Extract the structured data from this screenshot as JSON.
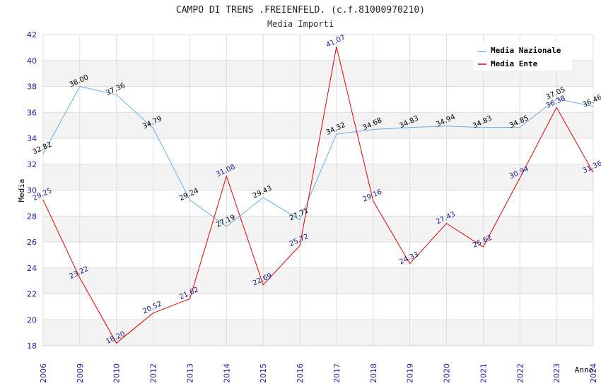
{
  "chart_data": {
    "type": "line",
    "title": "CAMPO DI TRENS .FREIENFELD. (c.f.81000970210)",
    "subtitle": "Media Importi",
    "xlabel": "Anno",
    "ylabel": "Media",
    "ylim": [
      18,
      42
    ],
    "yticks": [
      18,
      20,
      22,
      24,
      26,
      28,
      30,
      32,
      34,
      36,
      38,
      40,
      42
    ],
    "categories": [
      "2006",
      "2009",
      "2010",
      "2012",
      "2013",
      "2014",
      "2015",
      "2016",
      "2017",
      "2018",
      "2019",
      "2020",
      "2021",
      "2022",
      "2023",
      "2024"
    ],
    "series": [
      {
        "name": "Media Nazionale",
        "color": "#6aaee8",
        "label_color": "#000000",
        "values": [
          32.82,
          38.0,
          37.36,
          34.79,
          29.24,
          27.19,
          29.43,
          27.71,
          34.32,
          34.68,
          34.83,
          34.94,
          34.83,
          34.85,
          37.05,
          36.46
        ],
        "labels": [
          "32.82",
          "38.00",
          "37.36",
          "34.79",
          "29.24",
          "27.19",
          "29.43",
          "27.71",
          "34.32",
          "34.68",
          "34.83",
          "34.94",
          "34.83",
          "34.85",
          "37.05",
          "36.46"
        ]
      },
      {
        "name": "Media Ente",
        "color": "#e00000",
        "label_color": "#1a1a8c",
        "values": [
          29.25,
          23.22,
          18.2,
          20.52,
          21.62,
          31.08,
          22.69,
          25.72,
          41.07,
          29.16,
          24.33,
          27.43,
          25.62,
          30.94,
          36.38,
          31.36
        ],
        "labels": [
          "29.25",
          "23.22",
          "18.20",
          "20.52",
          "21.62",
          "31.08",
          "22.69",
          "25.72",
          "41.07",
          "29.16",
          "24.33",
          "27.43",
          "25.62",
          "30.94",
          "36.38",
          "31.36"
        ]
      }
    ],
    "grid": true,
    "legend_position": "top-right"
  }
}
